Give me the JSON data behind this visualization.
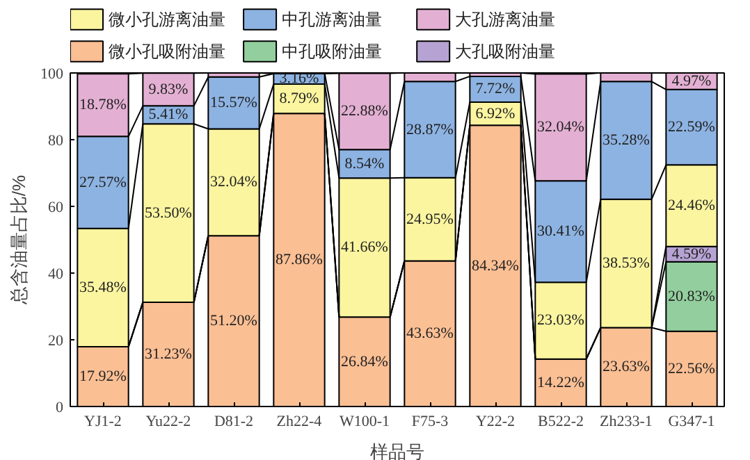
{
  "chart_data": {
    "type": "bar",
    "stacked": true,
    "ylabel": "总含油量占比/%",
    "xlabel": "样品号",
    "categories": [
      "YJ1-2",
      "Yu22-2",
      "D81-2",
      "Zh22-4",
      "W100-1",
      "F75-3",
      "Y22-2",
      "B522-2",
      "Zh233-1",
      "G347-1"
    ],
    "ylim": [
      0,
      100
    ],
    "yticks": [
      0,
      20,
      40,
      60,
      80,
      100
    ],
    "grid": false,
    "legend": "top",
    "series": [
      {
        "name": "微小孔吸附油量",
        "color": "#fbbf94",
        "values": [
          17.92,
          31.23,
          51.2,
          87.86,
          26.84,
          43.63,
          84.34,
          14.22,
          23.63,
          22.56
        ],
        "value_labels": [
          "17.92%",
          "31.23%",
          "51.20%",
          "87.86%",
          "26.84%",
          "43.63%",
          "84.34%",
          "14.22%",
          "23.63%",
          "22.56%"
        ]
      },
      {
        "name": "中孔吸附油量",
        "color": "#93cf9e",
        "values": [
          null,
          null,
          null,
          null,
          null,
          null,
          null,
          null,
          null,
          20.83
        ],
        "value_labels": [
          null,
          null,
          null,
          null,
          null,
          null,
          null,
          null,
          null,
          "20.83%"
        ]
      },
      {
        "name": "大孔吸附油量",
        "color": "#b7a3d3",
        "values": [
          null,
          null,
          null,
          null,
          null,
          null,
          null,
          null,
          null,
          4.59
        ],
        "value_labels": [
          null,
          null,
          null,
          null,
          null,
          null,
          null,
          null,
          null,
          "4.59%"
        ]
      },
      {
        "name": "微小孔游离油量",
        "color": "#fbf5a0",
        "values": [
          35.48,
          53.5,
          32.04,
          8.79,
          41.66,
          24.95,
          6.92,
          23.03,
          38.53,
          24.46
        ],
        "value_labels": [
          "35.48%",
          "53.50%",
          "32.04%",
          "8.79%",
          "41.66%",
          "24.95%",
          "6.92%",
          "23.03%",
          "38.53%",
          "24.46%"
        ]
      },
      {
        "name": "中孔游离油量",
        "color": "#8db3e2",
        "values": [
          27.57,
          5.41,
          15.57,
          3.16,
          8.54,
          28.87,
          7.72,
          30.41,
          35.28,
          22.59
        ],
        "value_labels": [
          "27.57%",
          "5.41%",
          "15.57%",
          "3.16%",
          "8.54%",
          "28.87%",
          "7.72%",
          "30.41%",
          "35.28%",
          "22.59%"
        ]
      },
      {
        "name": "大孔游离油量",
        "color": "#e3b0d3",
        "values": [
          18.78,
          9.83,
          1.2,
          null,
          22.88,
          2.6,
          1.0,
          32.04,
          2.6,
          4.97
        ],
        "value_labels": [
          "18.78%",
          "9.83%",
          null,
          null,
          "22.88%",
          null,
          null,
          "32.04%",
          null,
          "4.97%"
        ]
      }
    ]
  }
}
